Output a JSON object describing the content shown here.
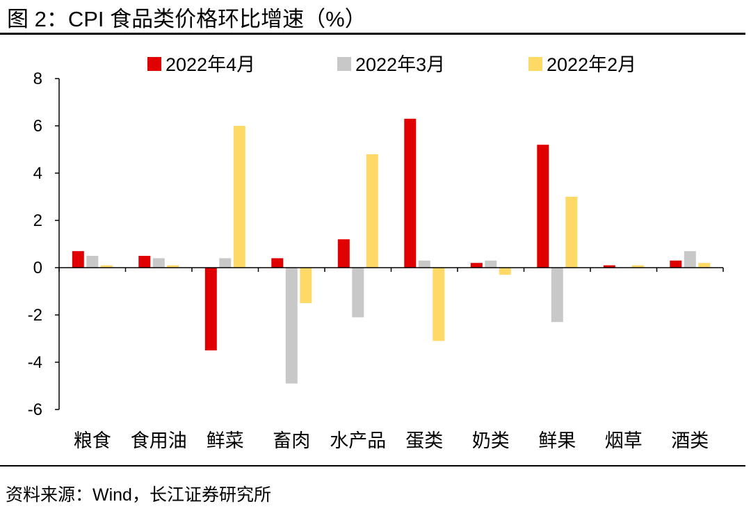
{
  "figure_title": "图 2：CPI 食品类价格环比增速（%）",
  "source": "资料来源：Wind，长江证券研究所",
  "chart_data": {
    "type": "bar",
    "title": "图 2：CPI 食品类价格环比增速（%）",
    "xlabel": "",
    "ylabel": "",
    "ylim": [
      -6,
      8
    ],
    "yticks": [
      8,
      6,
      4,
      2,
      0,
      -2,
      -4,
      -6
    ],
    "grid": false,
    "legend": "top-center",
    "categories": [
      "粮食",
      "食用油",
      "鲜菜",
      "畜肉",
      "水产品",
      "蛋类",
      "奶类",
      "鲜果",
      "烟草",
      "酒类"
    ],
    "series": [
      {
        "name": "2022年4月",
        "color": "#E00000",
        "values": [
          0.7,
          0.5,
          -3.5,
          0.4,
          1.2,
          6.3,
          0.2,
          5.2,
          0.1,
          0.3
        ]
      },
      {
        "name": "2022年3月",
        "color": "#C8C8C8",
        "values": [
          0.5,
          0.4,
          0.4,
          -4.9,
          -2.1,
          0.3,
          0.3,
          -2.3,
          0.0,
          0.7
        ]
      },
      {
        "name": "2022年2月",
        "color": "#FFD966",
        "values": [
          0.1,
          0.1,
          6.0,
          -1.5,
          4.8,
          -3.1,
          -0.3,
          3.0,
          0.1,
          0.2
        ]
      }
    ]
  }
}
